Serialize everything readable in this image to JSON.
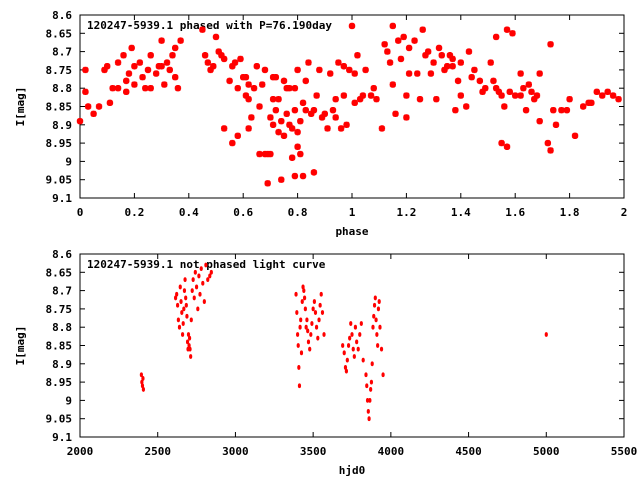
{
  "chart_data": [
    {
      "type": "scatter",
      "title": "120247-5939.1 phased with P=76.190day",
      "xlabel": "phase",
      "ylabel": "I[mag]",
      "xlim": [
        0,
        2
      ],
      "ylim": [
        8.6,
        9.1
      ],
      "y_inverted": true,
      "xticks": [
        "0",
        "0.2",
        "0.4",
        "0.6",
        "0.8",
        "1",
        "1.2",
        "1.4",
        "1.6",
        "1.8",
        "2"
      ],
      "yticks": [
        "8.6",
        "8.65",
        "8.7",
        "8.75",
        "8.8",
        "8.85",
        "8.9",
        "8.95",
        "9",
        "9.05",
        "9.1"
      ],
      "marker": "star",
      "color": "#ff0000",
      "points": [
        [
          0.0,
          8.89
        ],
        [
          0.02,
          8.75
        ],
        [
          0.02,
          8.81
        ],
        [
          0.03,
          8.85
        ],
        [
          0.05,
          8.87
        ],
        [
          0.07,
          8.85
        ],
        [
          0.09,
          8.75
        ],
        [
          0.1,
          8.74
        ],
        [
          0.11,
          8.84
        ],
        [
          0.12,
          8.8
        ],
        [
          0.14,
          8.73
        ],
        [
          0.14,
          8.8
        ],
        [
          0.16,
          8.71
        ],
        [
          0.17,
          8.78
        ],
        [
          0.17,
          8.81
        ],
        [
          0.18,
          8.76
        ],
        [
          0.19,
          8.69
        ],
        [
          0.2,
          8.74
        ],
        [
          0.2,
          8.79
        ],
        [
          0.22,
          8.73
        ],
        [
          0.23,
          8.77
        ],
        [
          0.24,
          8.8
        ],
        [
          0.25,
          8.75
        ],
        [
          0.26,
          8.71
        ],
        [
          0.26,
          8.8
        ],
        [
          0.28,
          8.76
        ],
        [
          0.29,
          8.74
        ],
        [
          0.3,
          8.67
        ],
        [
          0.3,
          8.74
        ],
        [
          0.31,
          8.79
        ],
        [
          0.32,
          8.73
        ],
        [
          0.33,
          8.75
        ],
        [
          0.34,
          8.71
        ],
        [
          0.35,
          8.69
        ],
        [
          0.35,
          8.77
        ],
        [
          0.36,
          8.8
        ],
        [
          0.37,
          8.67
        ],
        [
          0.45,
          8.64
        ],
        [
          0.46,
          8.71
        ],
        [
          0.47,
          8.73
        ],
        [
          0.48,
          8.75
        ],
        [
          0.49,
          8.74
        ],
        [
          0.5,
          8.66
        ],
        [
          0.51,
          8.7
        ],
        [
          0.52,
          8.71
        ],
        [
          0.53,
          8.72
        ],
        [
          0.53,
          8.91
        ],
        [
          0.55,
          8.78
        ],
        [
          0.56,
          8.74
        ],
        [
          0.56,
          8.95
        ],
        [
          0.57,
          8.73
        ],
        [
          0.58,
          8.8
        ],
        [
          0.58,
          8.93
        ],
        [
          0.59,
          8.72
        ],
        [
          0.6,
          8.77
        ],
        [
          0.61,
          8.77
        ],
        [
          0.61,
          8.82
        ],
        [
          0.62,
          8.79
        ],
        [
          0.62,
          8.83
        ],
        [
          0.62,
          8.91
        ],
        [
          0.63,
          8.88
        ],
        [
          0.64,
          8.8
        ],
        [
          0.65,
          8.74
        ],
        [
          0.66,
          8.85
        ],
        [
          0.66,
          8.98
        ],
        [
          0.67,
          8.79
        ],
        [
          0.68,
          8.75
        ],
        [
          0.68,
          8.98
        ],
        [
          0.69,
          8.98
        ],
        [
          0.69,
          9.06
        ],
        [
          0.7,
          8.88
        ],
        [
          0.7,
          8.98
        ],
        [
          0.71,
          8.77
        ],
        [
          0.71,
          8.83
        ],
        [
          0.71,
          8.9
        ],
        [
          0.72,
          8.77
        ],
        [
          0.72,
          8.86
        ],
        [
          0.73,
          8.83
        ],
        [
          0.73,
          8.92
        ],
        [
          0.74,
          8.89
        ],
        [
          0.74,
          9.05
        ],
        [
          0.75,
          8.78
        ],
        [
          0.75,
          8.93
        ],
        [
          0.76,
          8.8
        ],
        [
          0.76,
          8.87
        ],
        [
          0.77,
          8.8
        ],
        [
          0.77,
          8.9
        ],
        [
          0.78,
          8.91
        ],
        [
          0.78,
          8.99
        ],
        [
          0.79,
          8.8
        ],
        [
          0.79,
          8.86
        ],
        [
          0.79,
          9.04
        ],
        [
          0.8,
          8.75
        ],
        [
          0.8,
          8.92
        ],
        [
          0.8,
          8.96
        ],
        [
          0.81,
          8.89
        ],
        [
          0.81,
          8.98
        ],
        [
          0.82,
          8.84
        ],
        [
          0.82,
          9.04
        ],
        [
          0.83,
          8.78
        ],
        [
          0.83,
          8.86
        ],
        [
          0.84,
          8.73
        ],
        [
          0.85,
          8.87
        ],
        [
          0.86,
          8.86
        ],
        [
          0.86,
          9.03
        ],
        [
          0.87,
          8.82
        ],
        [
          0.88,
          8.75
        ],
        [
          0.89,
          8.88
        ],
        [
          0.9,
          8.87
        ],
        [
          0.91,
          8.91
        ],
        [
          0.92,
          8.76
        ],
        [
          0.93,
          8.86
        ],
        [
          0.94,
          8.83
        ],
        [
          0.94,
          8.88
        ],
        [
          0.95,
          8.73
        ],
        [
          0.96,
          8.91
        ],
        [
          0.97,
          8.74
        ],
        [
          0.97,
          8.82
        ],
        [
          0.98,
          8.9
        ],
        [
          0.99,
          8.75
        ],
        [
          1.0,
          8.63
        ],
        [
          1.01,
          8.76
        ],
        [
          1.01,
          8.84
        ],
        [
          1.02,
          8.71
        ],
        [
          1.03,
          8.83
        ],
        [
          1.04,
          8.82
        ],
        [
          1.05,
          8.75
        ],
        [
          1.07,
          8.82
        ],
        [
          1.08,
          8.8
        ],
        [
          1.09,
          8.83
        ],
        [
          1.11,
          8.91
        ],
        [
          1.12,
          8.68
        ],
        [
          1.13,
          8.7
        ],
        [
          1.14,
          8.73
        ],
        [
          1.15,
          8.63
        ],
        [
          1.15,
          8.79
        ],
        [
          1.16,
          8.87
        ],
        [
          1.17,
          8.67
        ],
        [
          1.18,
          8.72
        ],
        [
          1.19,
          8.66
        ],
        [
          1.2,
          8.82
        ],
        [
          1.2,
          8.88
        ],
        [
          1.21,
          8.69
        ],
        [
          1.21,
          8.76
        ],
        [
          1.23,
          8.67
        ],
        [
          1.24,
          8.76
        ],
        [
          1.25,
          8.83
        ],
        [
          1.26,
          8.64
        ],
        [
          1.27,
          8.71
        ],
        [
          1.28,
          8.7
        ],
        [
          1.29,
          8.76
        ],
        [
          1.3,
          8.73
        ],
        [
          1.31,
          8.83
        ],
        [
          1.32,
          8.69
        ],
        [
          1.33,
          8.71
        ],
        [
          1.34,
          8.75
        ],
        [
          1.35,
          8.74
        ],
        [
          1.36,
          8.71
        ],
        [
          1.37,
          8.72
        ],
        [
          1.37,
          8.74
        ],
        [
          1.38,
          8.86
        ],
        [
          1.39,
          8.78
        ],
        [
          1.4,
          8.73
        ],
        [
          1.4,
          8.82
        ],
        [
          1.42,
          8.85
        ],
        [
          1.43,
          8.7
        ],
        [
          1.44,
          8.77
        ],
        [
          1.45,
          8.75
        ],
        [
          1.47,
          8.78
        ],
        [
          1.48,
          8.81
        ],
        [
          1.49,
          8.8
        ],
        [
          1.51,
          8.73
        ],
        [
          1.52,
          8.78
        ],
        [
          1.53,
          8.66
        ],
        [
          1.53,
          8.8
        ],
        [
          1.54,
          8.81
        ],
        [
          1.55,
          8.82
        ],
        [
          1.55,
          8.95
        ],
        [
          1.56,
          8.85
        ],
        [
          1.57,
          8.64
        ],
        [
          1.57,
          8.96
        ],
        [
          1.58,
          8.81
        ],
        [
          1.59,
          8.65
        ],
        [
          1.6,
          8.82
        ],
        [
          1.62,
          8.82
        ],
        [
          1.62,
          8.76
        ],
        [
          1.63,
          8.8
        ],
        [
          1.64,
          8.86
        ],
        [
          1.65,
          8.79
        ],
        [
          1.66,
          8.81
        ],
        [
          1.67,
          8.83
        ],
        [
          1.68,
          8.82
        ],
        [
          1.69,
          8.76
        ],
        [
          1.69,
          8.89
        ],
        [
          1.72,
          8.95
        ],
        [
          1.73,
          8.68
        ],
        [
          1.73,
          8.97
        ],
        [
          1.74,
          8.86
        ],
        [
          1.75,
          8.9
        ],
        [
          1.77,
          8.86
        ],
        [
          1.79,
          8.86
        ],
        [
          1.8,
          8.83
        ],
        [
          1.82,
          8.93
        ],
        [
          1.85,
          8.85
        ],
        [
          1.87,
          8.84
        ],
        [
          1.88,
          8.84
        ],
        [
          1.9,
          8.81
        ],
        [
          1.92,
          8.82
        ],
        [
          1.94,
          8.81
        ],
        [
          1.96,
          8.82
        ],
        [
          1.98,
          8.83
        ]
      ]
    },
    {
      "type": "scatter",
      "title": "120247-5939.1 not phased light curve",
      "xlabel": "hjd0",
      "ylabel": "I[mag]",
      "xlim": [
        2000,
        5500
      ],
      "ylim": [
        8.6,
        9.1
      ],
      "y_inverted": true,
      "xticks": [
        "2000",
        "2500",
        "3000",
        "3500",
        "4000",
        "4500",
        "5000",
        "5500"
      ],
      "yticks": [
        "8.6",
        "8.65",
        "8.7",
        "8.75",
        "8.8",
        "8.85",
        "8.9",
        "8.95",
        "9",
        "9.05",
        "9.1"
      ],
      "marker": "dot",
      "color": "#ff0000",
      "points": [
        [
          2395,
          8.93
        ],
        [
          2398,
          8.95
        ],
        [
          2402,
          8.96
        ],
        [
          2405,
          8.94
        ],
        [
          2408,
          8.97
        ],
        [
          2615,
          8.72
        ],
        [
          2622,
          8.71
        ],
        [
          2628,
          8.74
        ],
        [
          2633,
          8.78
        ],
        [
          2640,
          8.8
        ],
        [
          2645,
          8.69
        ],
        [
          2650,
          8.73
        ],
        [
          2655,
          8.76
        ],
        [
          2660,
          8.82
        ],
        [
          2664,
          8.79
        ],
        [
          2668,
          8.75
        ],
        [
          2672,
          8.7
        ],
        [
          2676,
          8.67
        ],
        [
          2680,
          8.72
        ],
        [
          2684,
          8.74
        ],
        [
          2688,
          8.77
        ],
        [
          2692,
          8.84
        ],
        [
          2695,
          8.86
        ],
        [
          2698,
          8.82
        ],
        [
          2702,
          8.85
        ],
        [
          2705,
          8.83
        ],
        [
          2708,
          8.86
        ],
        [
          2712,
          8.88
        ],
        [
          2716,
          8.78
        ],
        [
          2722,
          8.7
        ],
        [
          2728,
          8.67
        ],
        [
          2735,
          8.72
        ],
        [
          2742,
          8.65
        ],
        [
          2750,
          8.69
        ],
        [
          2758,
          8.75
        ],
        [
          2765,
          8.66
        ],
        [
          2772,
          8.71
        ],
        [
          2780,
          8.64
        ],
        [
          2790,
          8.68
        ],
        [
          2800,
          8.73
        ],
        [
          2810,
          8.63
        ],
        [
          2822,
          8.67
        ],
        [
          2835,
          8.66
        ],
        [
          2845,
          8.65
        ],
        [
          3390,
          8.71
        ],
        [
          3395,
          8.76
        ],
        [
          3400,
          8.82
        ],
        [
          3404,
          8.85
        ],
        [
          3408,
          8.91
        ],
        [
          3412,
          8.96
        ],
        [
          3416,
          8.8
        ],
        [
          3420,
          8.78
        ],
        [
          3425,
          8.87
        ],
        [
          3430,
          8.73
        ],
        [
          3435,
          8.69
        ],
        [
          3440,
          8.7
        ],
        [
          3445,
          8.72
        ],
        [
          3450,
          8.75
        ],
        [
          3455,
          8.8
        ],
        [
          3460,
          8.78
        ],
        [
          3465,
          8.81
        ],
        [
          3470,
          8.84
        ],
        [
          3478,
          8.86
        ],
        [
          3485,
          8.82
        ],
        [
          3492,
          8.79
        ],
        [
          3500,
          8.75
        ],
        [
          3508,
          8.73
        ],
        [
          3515,
          8.76
        ],
        [
          3522,
          8.8
        ],
        [
          3530,
          8.83
        ],
        [
          3538,
          8.78
        ],
        [
          3545,
          8.74
        ],
        [
          3552,
          8.71
        ],
        [
          3560,
          8.76
        ],
        [
          3570,
          8.82
        ],
        [
          3690,
          8.85
        ],
        [
          3700,
          8.87
        ],
        [
          3708,
          8.91
        ],
        [
          3714,
          8.92
        ],
        [
          3720,
          8.89
        ],
        [
          3728,
          8.85
        ],
        [
          3735,
          8.83
        ],
        [
          3742,
          8.79
        ],
        [
          3750,
          8.82
        ],
        [
          3758,
          8.86
        ],
        [
          3765,
          8.88
        ],
        [
          3772,
          8.8
        ],
        [
          3780,
          8.84
        ],
        [
          3790,
          8.86
        ],
        [
          3800,
          8.82
        ],
        [
          3810,
          8.79
        ],
        [
          3822,
          8.89
        ],
        [
          3840,
          8.93
        ],
        [
          3845,
          8.96
        ],
        [
          3850,
          9.0
        ],
        [
          3855,
          9.03
        ],
        [
          3860,
          9.05
        ],
        [
          3865,
          9.0
        ],
        [
          3870,
          8.97
        ],
        [
          3875,
          8.95
        ],
        [
          3880,
          8.9
        ],
        [
          3885,
          8.8
        ],
        [
          3890,
          8.77
        ],
        [
          3895,
          8.74
        ],
        [
          3900,
          8.72
        ],
        [
          3905,
          8.78
        ],
        [
          3910,
          8.82
        ],
        [
          3915,
          8.85
        ],
        [
          3920,
          8.75
        ],
        [
          3925,
          8.73
        ],
        [
          3930,
          8.8
        ],
        [
          3940,
          8.86
        ],
        [
          3950,
          8.93
        ],
        [
          5000,
          8.82
        ]
      ]
    }
  ]
}
